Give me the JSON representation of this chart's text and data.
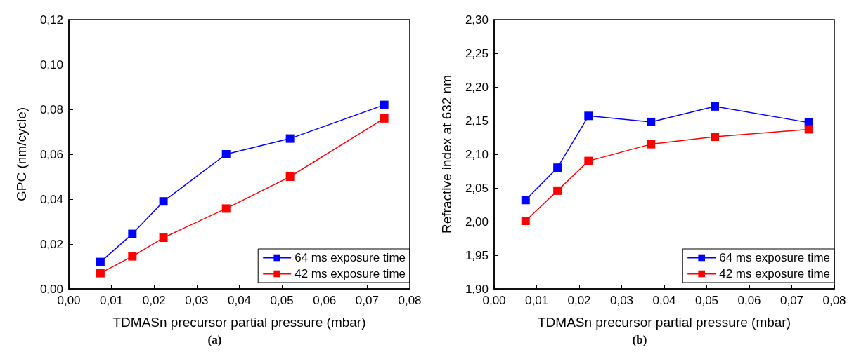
{
  "chart_data": [
    {
      "type": "line",
      "xlabel": "TDMASn precursor partial pressure (mbar)",
      "ylabel": "GPC (nm/cycle)",
      "annotations": [
        "(a)"
      ],
      "x": [
        0.0074,
        0.0149,
        0.0222,
        0.0369,
        0.0519,
        0.074
      ],
      "series": [
        {
          "name": "64 ms exposure time",
          "color": "#0000ff",
          "values": [
            0.012,
            0.0245,
            0.039,
            0.06,
            0.067,
            0.082
          ]
        },
        {
          "name": "42 ms exposure time",
          "color": "#ff0000",
          "values": [
            0.007,
            0.0145,
            0.0228,
            0.0358,
            0.05,
            0.076
          ]
        }
      ],
      "xlim": [
        0,
        0.08
      ],
      "xticks": [
        {
          "value": 0,
          "label": "0,00"
        },
        {
          "value": 0.01,
          "label": "0,01"
        },
        {
          "value": 0.02,
          "label": "0,02"
        },
        {
          "value": 0.03,
          "label": "0,03"
        },
        {
          "value": 0.04,
          "label": "0,04"
        },
        {
          "value": 0.05,
          "label": "0,05"
        },
        {
          "value": 0.06,
          "label": "0,06"
        },
        {
          "value": 0.07,
          "label": "0,07"
        },
        {
          "value": 0.08,
          "label": "0,08"
        }
      ],
      "ylim": [
        0,
        0.12
      ],
      "yticks": [
        {
          "value": 0,
          "label": "0,00"
        },
        {
          "value": 0.02,
          "label": "0,02"
        },
        {
          "value": 0.04,
          "label": "0,04"
        },
        {
          "value": 0.06,
          "label": "0,06"
        },
        {
          "value": 0.08,
          "label": "0,08"
        },
        {
          "value": 0.1,
          "label": "0,10"
        },
        {
          "value": 0.12,
          "label": "0,12"
        }
      ],
      "legend": "bottom right",
      "marker": "square",
      "line_style": "solid",
      "grid": false
    },
    {
      "type": "line",
      "xlabel": "TDMASn precursor partial pressure (mbar)",
      "ylabel": "Refractive index at 632 nm",
      "annotations": [
        "(b)"
      ],
      "x": [
        0.0074,
        0.0149,
        0.0222,
        0.0369,
        0.0519,
        0.074
      ],
      "series": [
        {
          "name": "64 ms exposure time",
          "color": "#0000ff",
          "values": [
            2.032,
            2.08,
            2.157,
            2.148,
            2.171,
            2.147
          ]
        },
        {
          "name": "42 ms exposure time",
          "color": "#ff0000",
          "values": [
            2.001,
            2.046,
            2.09,
            2.115,
            2.126,
            2.137
          ]
        }
      ],
      "xlim": [
        0,
        0.08
      ],
      "xticks": [
        {
          "value": 0,
          "label": "0,00"
        },
        {
          "value": 0.01,
          "label": "0,01"
        },
        {
          "value": 0.02,
          "label": "0,02"
        },
        {
          "value": 0.03,
          "label": "0,03"
        },
        {
          "value": 0.04,
          "label": "0,04"
        },
        {
          "value": 0.05,
          "label": "0,05"
        },
        {
          "value": 0.06,
          "label": "0,06"
        },
        {
          "value": 0.07,
          "label": "0,07"
        },
        {
          "value": 0.08,
          "label": "0,08"
        }
      ],
      "ylim": [
        1.9,
        2.3
      ],
      "yticks": [
        {
          "value": 1.9,
          "label": "1,90"
        },
        {
          "value": 1.95,
          "label": "1,95"
        },
        {
          "value": 2.0,
          "label": "2,00"
        },
        {
          "value": 2.05,
          "label": "2,05"
        },
        {
          "value": 2.1,
          "label": "2,10"
        },
        {
          "value": 2.15,
          "label": "2,15"
        },
        {
          "value": 2.2,
          "label": "2,20"
        },
        {
          "value": 2.25,
          "label": "2,25"
        },
        {
          "value": 2.3,
          "label": "2,30"
        }
      ],
      "legend": "bottom right",
      "marker": "square",
      "line_style": "solid",
      "grid": false
    }
  ]
}
